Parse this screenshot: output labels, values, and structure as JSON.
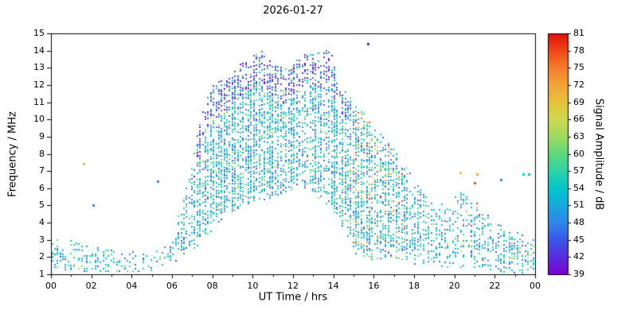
{
  "chart_data": {
    "type": "scatter",
    "title": "2026-01-27",
    "xlabel": "UT Time / hrs",
    "ylabel": "Frequency / MHz",
    "colorbar_label": "Signal Amplitude / dB",
    "xlim": [
      0,
      24
    ],
    "ylim": [
      1,
      15
    ],
    "grid": false,
    "legend": "none",
    "x_tick_values": [
      0,
      2,
      4,
      6,
      8,
      10,
      12,
      14,
      16,
      18,
      20,
      22,
      24
    ],
    "x_tick_labels": [
      "00",
      "02",
      "04",
      "06",
      "08",
      "10",
      "12",
      "14",
      "16",
      "18",
      "20",
      "22",
      "00"
    ],
    "y_tick_values": [
      1,
      2,
      3,
      4,
      5,
      6,
      7,
      8,
      9,
      10,
      11,
      12,
      13,
      14,
      15
    ],
    "colorbar_range": [
      39,
      81
    ],
    "colorbar_ticks": [
      39,
      42,
      45,
      48,
      51,
      54,
      57,
      60,
      63,
      66,
      69,
      72,
      75,
      78,
      81
    ],
    "colormap": [
      {
        "v": 39,
        "color": "#7d00d4"
      },
      {
        "v": 42,
        "color": "#5a2be0"
      },
      {
        "v": 45,
        "color": "#3a55e8"
      },
      {
        "v": 48,
        "color": "#2f86e8"
      },
      {
        "v": 51,
        "color": "#18a8e0"
      },
      {
        "v": 54,
        "color": "#00c6cc"
      },
      {
        "v": 57,
        "color": "#2ed3a8"
      },
      {
        "v": 60,
        "color": "#5cd97c"
      },
      {
        "v": 63,
        "color": "#9edb5e"
      },
      {
        "v": 66,
        "color": "#cdd94e"
      },
      {
        "v": 69,
        "color": "#e8c33e"
      },
      {
        "v": 72,
        "color": "#f2a437"
      },
      {
        "v": 75,
        "color": "#f67e2a"
      },
      {
        "v": 78,
        "color": "#f04818"
      },
      {
        "v": 81,
        "color": "#e01008"
      }
    ],
    "sounding_interval_hrs": 0.1333,
    "freq_step_mhz": 0.12,
    "envelope_format": [
      "time_hrs",
      "freq_min_mhz",
      "freq_max_mhz",
      "density"
    ],
    "envelope": [
      [
        0.0,
        1.3,
        3.2,
        0.55
      ],
      [
        0.7,
        1.3,
        3.1,
        0.5
      ],
      [
        1.5,
        1.2,
        2.8,
        0.45
      ],
      [
        2.5,
        1.2,
        2.5,
        0.4
      ],
      [
        3.5,
        1.2,
        2.3,
        0.38
      ],
      [
        4.5,
        1.2,
        2.3,
        0.42
      ],
      [
        5.5,
        1.3,
        2.5,
        0.45
      ],
      [
        6.0,
        1.5,
        3.2,
        0.4
      ],
      [
        6.4,
        1.8,
        5.0,
        0.4
      ],
      [
        6.8,
        2.1,
        6.5,
        0.45
      ],
      [
        7.2,
        2.6,
        9.0,
        0.5
      ],
      [
        7.6,
        3.1,
        10.8,
        0.5
      ],
      [
        8.0,
        3.6,
        12.0,
        0.55
      ],
      [
        8.6,
        4.2,
        12.4,
        0.55
      ],
      [
        9.2,
        4.8,
        13.1,
        0.58
      ],
      [
        9.8,
        5.1,
        13.6,
        0.6
      ],
      [
        10.4,
        5.3,
        14.2,
        0.6
      ],
      [
        11.0,
        5.5,
        13.2,
        0.55
      ],
      [
        11.6,
        5.8,
        13.0,
        0.5
      ],
      [
        12.2,
        6.0,
        13.7,
        0.55
      ],
      [
        12.8,
        5.9,
        14.0,
        0.52
      ],
      [
        13.4,
        5.3,
        13.8,
        0.52
      ],
      [
        13.8,
        5.0,
        14.3,
        0.5
      ],
      [
        14.2,
        4.4,
        12.4,
        0.5
      ],
      [
        14.7,
        3.3,
        11.8,
        0.52
      ],
      [
        15.1,
        2.2,
        11.0,
        0.6
      ],
      [
        15.6,
        1.9,
        10.4,
        0.6
      ],
      [
        16.1,
        1.9,
        9.5,
        0.55
      ],
      [
        16.6,
        2.0,
        8.8,
        0.5
      ],
      [
        17.1,
        2.0,
        8.1,
        0.5
      ],
      [
        17.6,
        1.8,
        7.3,
        0.46
      ],
      [
        18.1,
        1.6,
        6.5,
        0.44
      ],
      [
        18.6,
        1.5,
        5.7,
        0.4
      ],
      [
        19.2,
        1.5,
        5.1,
        0.4
      ],
      [
        19.8,
        1.4,
        5.2,
        0.4
      ],
      [
        20.4,
        1.4,
        5.9,
        0.4
      ],
      [
        21.0,
        1.4,
        5.3,
        0.4
      ],
      [
        21.6,
        1.3,
        4.5,
        0.4
      ],
      [
        22.2,
        1.2,
        3.9,
        0.42
      ],
      [
        22.8,
        1.1,
        3.6,
        0.45
      ],
      [
        23.4,
        1.1,
        3.4,
        0.47
      ],
      [
        24.0,
        1.2,
        3.0,
        0.5
      ]
    ],
    "amplitude_model": {
      "base_range": [
        45,
        58
      ],
      "upper_edge": {
        "t0": 7.0,
        "t1": 14.6,
        "band_mhz": 2.0,
        "range": [
          39,
          47
        ],
        "p": 0.65
      },
      "hot_zones": [
        {
          "t0": 14.8,
          "t1": 17.6,
          "p": 0.12,
          "range": [
            60,
            81
          ]
        },
        {
          "t0": 19.8,
          "t1": 21.5,
          "p": 0.12,
          "range": [
            60,
            81
          ]
        },
        {
          "t0": 22.6,
          "t1": 24.0,
          "p": 0.04,
          "range": [
            57,
            66
          ]
        }
      ]
    },
    "outliers_format": [
      "time_hrs",
      "freq_mhz",
      "amplitude_db"
    ],
    "outliers": [
      [
        1.6,
        7.4,
        63
      ],
      [
        2.1,
        5.0,
        48
      ],
      [
        5.3,
        6.4,
        48
      ],
      [
        15.7,
        14.4,
        40
      ],
      [
        20.3,
        6.9,
        69
      ],
      [
        21.0,
        6.3,
        78
      ],
      [
        21.1,
        6.8,
        72
      ],
      [
        22.3,
        6.5,
        48
      ],
      [
        23.4,
        6.8,
        54
      ],
      [
        23.7,
        6.8,
        54
      ]
    ]
  }
}
